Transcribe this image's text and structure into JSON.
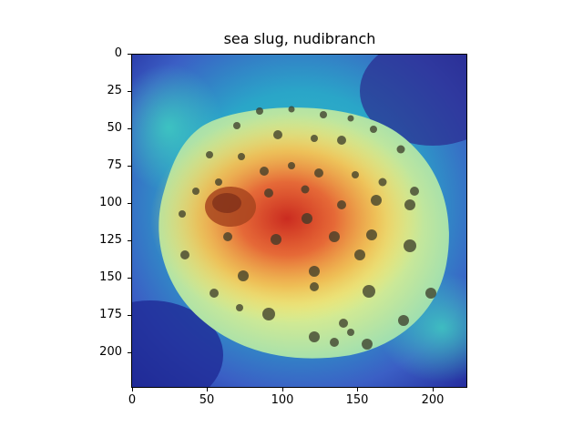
{
  "figure": {
    "title": "sea slug, nudibranch"
  },
  "axes": {
    "y_ticks": [
      "0",
      "25",
      "50",
      "75",
      "100",
      "125",
      "150",
      "175",
      "200"
    ],
    "x_ticks": [
      "0",
      "50",
      "100",
      "150",
      "200"
    ]
  },
  "image": {
    "subject": "yellow spotted animal with heatmap overlay",
    "colors": {
      "background_deep": "#2a2f9a",
      "background_mid": "#2aa8c8",
      "body_yellow": "#e8ef8a",
      "heat_orange": "#f2a23a",
      "heat_red": "#d8362a",
      "spot_dark": "#3a3a2a"
    }
  }
}
